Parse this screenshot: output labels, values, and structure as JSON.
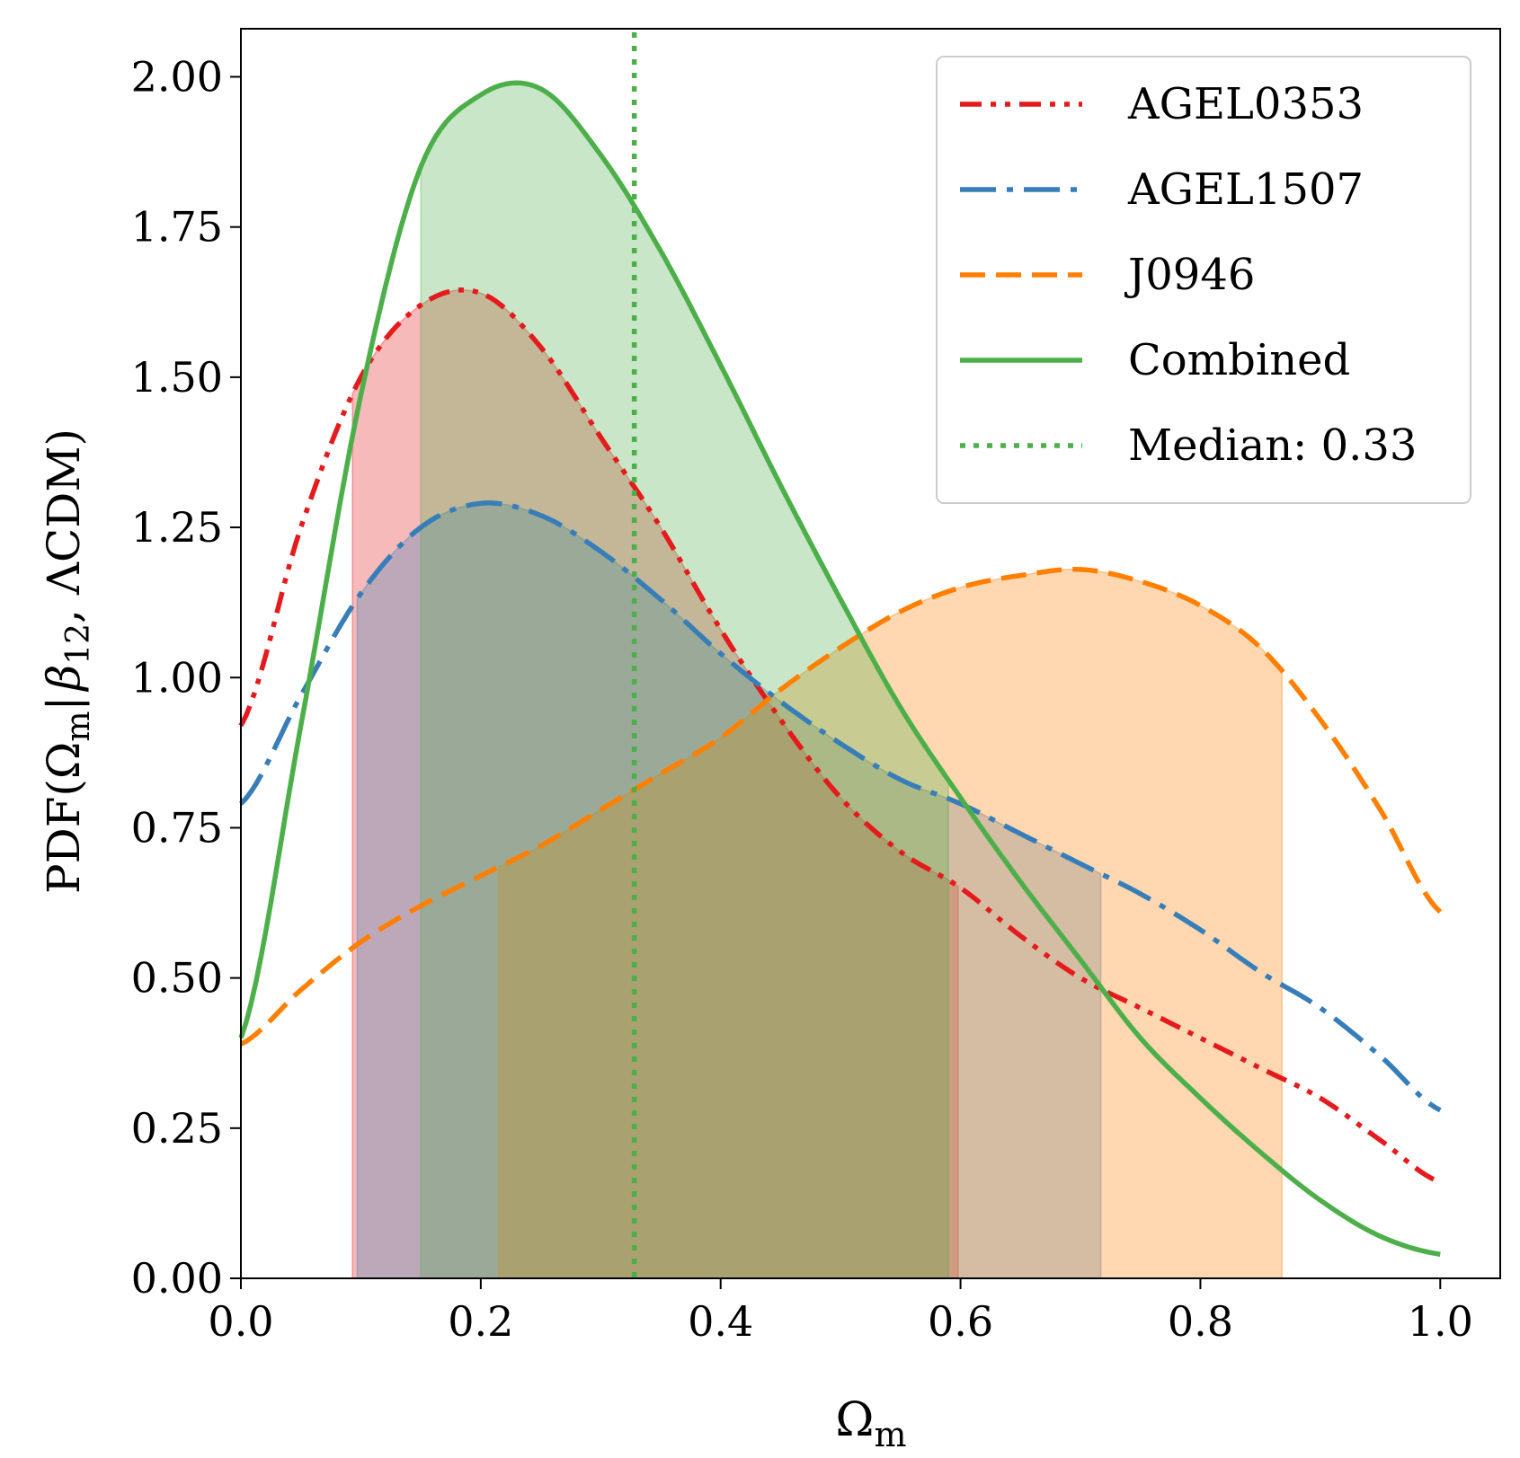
{
  "chart_data": {
    "type": "line",
    "title": "",
    "xlabel": {
      "main": "Ω",
      "sub": "m"
    },
    "ylabel": {
      "prefix": "PDF(Ω",
      "sub_m": "m",
      "bar": "|",
      "beta": "β",
      "sub_beta": "12",
      "suffix": ", ΛCDM)"
    },
    "xlim": [
      0.0,
      1.05
    ],
    "ylim": [
      0.0,
      2.08
    ],
    "xticks": [
      0.0,
      0.2,
      0.4,
      0.6,
      0.8,
      1.0
    ],
    "xtick_labels": [
      "0.0",
      "0.2",
      "0.4",
      "0.6",
      "0.8",
      "1.0"
    ],
    "yticks": [
      0.0,
      0.25,
      0.5,
      0.75,
      1.0,
      1.25,
      1.5,
      1.75,
      2.0
    ],
    "ytick_labels": [
      "0.00",
      "0.25",
      "0.50",
      "0.75",
      "1.00",
      "1.25",
      "1.50",
      "1.75",
      "2.00"
    ],
    "grid": false,
    "legend_position": "top-right",
    "series": [
      {
        "name": "AGEL0353",
        "color": "#e41a1c",
        "style": "dash-dot-dot",
        "credible_interval": [
          0.093,
          0.598
        ],
        "x": [
          0.0,
          0.05,
          0.1,
          0.15,
          0.2,
          0.25,
          0.3,
          0.35,
          0.4,
          0.45,
          0.5,
          0.55,
          0.6,
          0.65,
          0.7,
          0.75,
          0.8,
          0.85,
          0.9,
          0.95,
          1.0
        ],
        "y": [
          0.92,
          1.25,
          1.5,
          1.62,
          1.64,
          1.55,
          1.4,
          1.25,
          1.08,
          0.93,
          0.8,
          0.71,
          0.65,
          0.57,
          0.5,
          0.45,
          0.4,
          0.35,
          0.3,
          0.23,
          0.16
        ]
      },
      {
        "name": "AGEL1507",
        "color": "#377eb8",
        "style": "dash-dot",
        "credible_interval": [
          0.097,
          0.717
        ],
        "x": [
          0.0,
          0.05,
          0.1,
          0.15,
          0.2,
          0.25,
          0.3,
          0.35,
          0.4,
          0.45,
          0.5,
          0.55,
          0.6,
          0.65,
          0.7,
          0.75,
          0.8,
          0.85,
          0.9,
          0.95,
          1.0
        ],
        "y": [
          0.79,
          0.97,
          1.14,
          1.25,
          1.29,
          1.27,
          1.21,
          1.13,
          1.04,
          0.96,
          0.89,
          0.83,
          0.79,
          0.74,
          0.69,
          0.64,
          0.58,
          0.51,
          0.45,
          0.37,
          0.28
        ]
      },
      {
        "name": "J0946",
        "color": "#ff7f00",
        "style": "dashed",
        "credible_interval": [
          0.215,
          0.868
        ],
        "x": [
          0.0,
          0.05,
          0.1,
          0.15,
          0.2,
          0.25,
          0.3,
          0.35,
          0.4,
          0.45,
          0.5,
          0.55,
          0.6,
          0.65,
          0.7,
          0.75,
          0.8,
          0.85,
          0.9,
          0.95,
          1.0
        ],
        "y": [
          0.39,
          0.48,
          0.56,
          0.62,
          0.67,
          0.72,
          0.78,
          0.84,
          0.9,
          0.98,
          1.05,
          1.11,
          1.15,
          1.17,
          1.18,
          1.16,
          1.12,
          1.05,
          0.93,
          0.78,
          0.61
        ]
      },
      {
        "name": "Combined",
        "color": "#4daf4a",
        "style": "solid",
        "credible_interval": [
          0.15,
          0.59
        ],
        "x": [
          0.0,
          0.05,
          0.1,
          0.15,
          0.2,
          0.25,
          0.3,
          0.35,
          0.4,
          0.45,
          0.5,
          0.55,
          0.6,
          0.65,
          0.7,
          0.75,
          0.8,
          0.85,
          0.9,
          0.95,
          1.0
        ],
        "y": [
          0.4,
          0.92,
          1.47,
          1.85,
          1.97,
          1.98,
          1.87,
          1.71,
          1.52,
          1.32,
          1.13,
          0.95,
          0.8,
          0.66,
          0.53,
          0.4,
          0.3,
          0.21,
          0.13,
          0.07,
          0.04
        ]
      }
    ],
    "median": {
      "name": "Median: 0.33",
      "value": 0.328,
      "color": "#4daf4a",
      "style": "dotted"
    }
  }
}
